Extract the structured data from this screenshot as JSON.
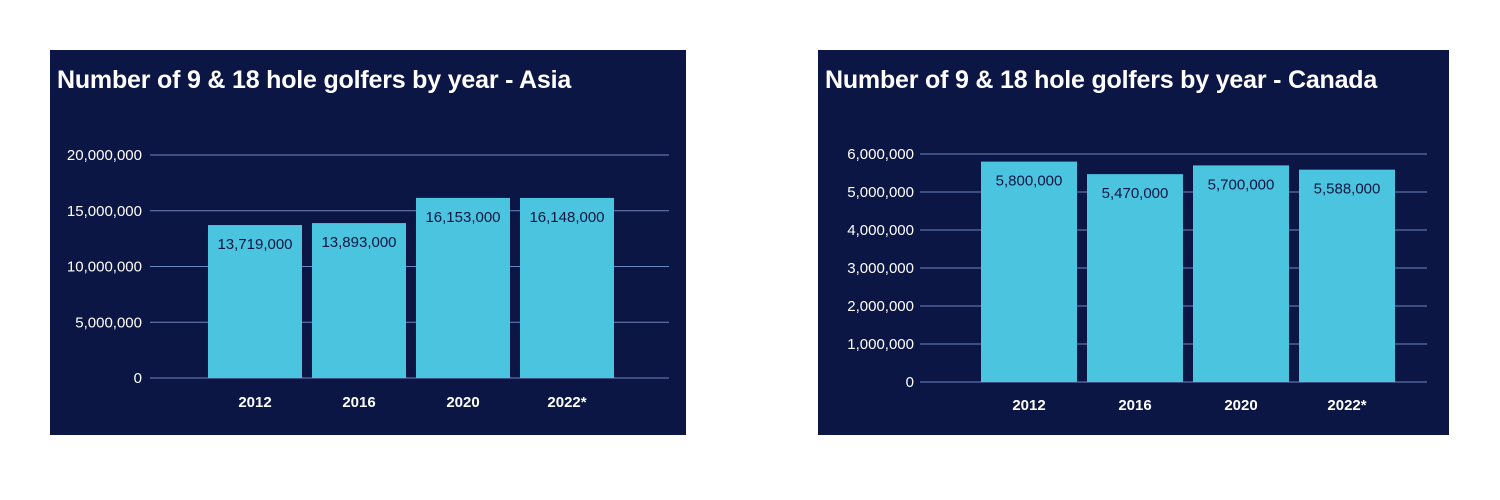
{
  "colors": {
    "panel_background": "#0b1644",
    "bar": "#4bc4e0",
    "gridline": "#6c86bf",
    "text": "#ffffff",
    "data_label": "#0b1644"
  },
  "chart_data": [
    {
      "type": "bar",
      "title": "Number of 9 & 18 hole golfers by year - Asia",
      "categories": [
        "2012",
        "2016",
        "2020",
        "2022*"
      ],
      "values": [
        13719000,
        13893000,
        16153000,
        16148000
      ],
      "data_labels": [
        "13,719,000",
        "13,893,000",
        "16,153,000",
        "16,148,000"
      ],
      "y_ticks": [
        "0",
        "5,000,000",
        "10,000,000",
        "15,000,000",
        "20,000,000"
      ],
      "ylim": [
        0,
        20000000
      ],
      "grid": true,
      "legend": "none"
    },
    {
      "type": "bar",
      "title": "Number of 9 & 18 hole golfers by year - Canada",
      "categories": [
        "2012",
        "2016",
        "2020",
        "2022*"
      ],
      "values": [
        5800000,
        5470000,
        5700000,
        5588000
      ],
      "data_labels": [
        "5,800,000",
        "5,470,000",
        "5,700,000",
        "5,588,000"
      ],
      "y_ticks": [
        "0",
        "1,000,000",
        "2,000,000",
        "3,000,000",
        "4,000,000",
        "5,000,000",
        "6,000,000"
      ],
      "ylim": [
        0,
        6000000
      ],
      "grid": true,
      "legend": "none"
    }
  ]
}
